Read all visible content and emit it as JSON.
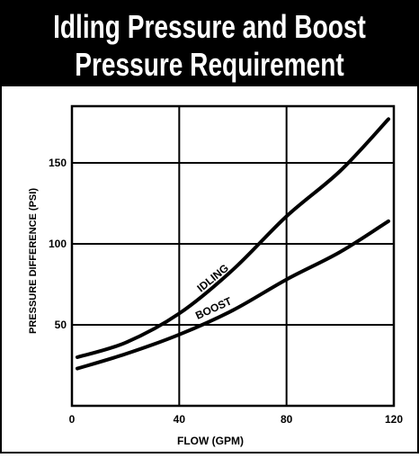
{
  "chart_data": {
    "type": "line",
    "title": [
      "Idling Pressure and Boost",
      "Pressure Requirement"
    ],
    "x_label": "FLOW (GPM)",
    "y_label": "PRESSURE DIFFERENCE (PSI)",
    "x": [
      2,
      20,
      40,
      60,
      80,
      100,
      118
    ],
    "series": [
      {
        "name": "IDLING",
        "color": "#000000",
        "values": [
          30,
          39,
          57,
          84,
          117,
          145,
          177
        ]
      },
      {
        "name": "BOOST",
        "color": "#000000",
        "values": [
          23,
          32,
          44,
          59,
          78,
          95,
          114
        ]
      }
    ],
    "xlim": [
      0,
      120
    ],
    "ylim": [
      0,
      185
    ],
    "xticks": [
      0,
      40,
      80,
      120
    ],
    "yticks": [
      50,
      100,
      150
    ],
    "grid": true
  }
}
